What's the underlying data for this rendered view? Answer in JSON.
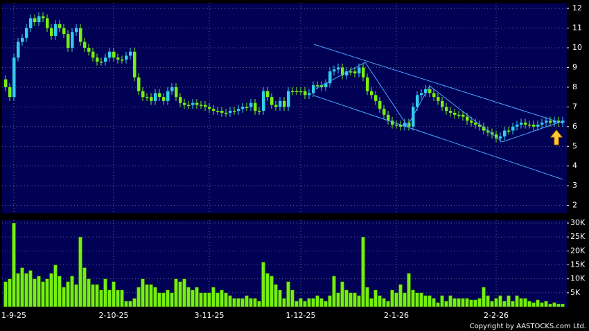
{
  "chart_data": {
    "type": "candlestick",
    "categories": [
      null,
      null,
      "1-9-25",
      null,
      null,
      null,
      null,
      null,
      null,
      null,
      null,
      null,
      null,
      null,
      null,
      null,
      null,
      null,
      null,
      null,
      null,
      null,
      null,
      null,
      null,
      null,
      "2-10-25",
      null,
      null,
      null,
      null,
      null,
      null,
      null,
      null,
      null,
      null,
      null,
      null,
      null,
      null,
      null,
      null,
      null,
      null,
      null,
      null,
      null,
      null,
      "3-11-25",
      null,
      null,
      null,
      null,
      null,
      null,
      null,
      null,
      null,
      null,
      null,
      null,
      null,
      null,
      null,
      null,
      null,
      null,
      null,
      null,
      null,
      "1-12-25",
      null,
      null,
      null,
      null,
      null,
      null,
      null,
      null,
      null,
      null,
      null,
      null,
      null,
      null,
      null,
      null,
      null,
      null,
      null,
      null,
      null,
      null,
      "2-1-26",
      null,
      null,
      null,
      null,
      null,
      null,
      null,
      null,
      null,
      null,
      null,
      null,
      null,
      null,
      null,
      null,
      null,
      null,
      null,
      null,
      null,
      null,
      null,
      "2-2-26",
      null,
      null,
      null,
      null,
      null,
      null,
      null,
      null,
      null,
      null,
      null,
      null,
      null,
      null,
      null,
      null
    ],
    "open": [
      8.4,
      8.0,
      7.5,
      9.5,
      10.3,
      10.5,
      11.0,
      11.5,
      11.3,
      11.6,
      11.5,
      11.0,
      10.6,
      11.2,
      11.0,
      10.7,
      10.0,
      10.8,
      11.0,
      10.3,
      10.0,
      9.8,
      9.5,
      9.3,
      9.3,
      9.5,
      9.8,
      9.5,
      9.4,
      9.4,
      9.6,
      9.8,
      8.5,
      7.8,
      7.5,
      7.5,
      7.3,
      7.7,
      7.5,
      7.3,
      7.8,
      8.0,
      7.5,
      7.2,
      7.1,
      7.1,
      7.2,
      7.1,
      7.1,
      7.0,
      6.9,
      6.8,
      6.8,
      6.7,
      6.7,
      6.8,
      6.8,
      6.9,
      7.0,
      7.0,
      7.2,
      6.8,
      6.8,
      7.8,
      7.5,
      7.1,
      7.0,
      7.3,
      7.0,
      7.8,
      7.8,
      7.8,
      7.8,
      7.6,
      7.7,
      8.1,
      8.1,
      8.0,
      8.2,
      8.8,
      8.9,
      9.0,
      8.6,
      8.8,
      8.8,
      8.7,
      9.0,
      8.5,
      7.8,
      7.6,
      7.3,
      6.9,
      6.6,
      6.3,
      6.1,
      6.1,
      6.0,
      6.2,
      6.0,
      7.0,
      7.6,
      7.7,
      7.9,
      7.7,
      7.5,
      7.3,
      7.0,
      6.8,
      6.7,
      6.6,
      6.6,
      6.5,
      6.3,
      6.2,
      6.1,
      6.0,
      5.8,
      5.7,
      5.6,
      5.4,
      5.5,
      5.8,
      5.8,
      6.0,
      6.1,
      6.2,
      6.1,
      6.1,
      6.0,
      6.1,
      6.2,
      6.3,
      6.2,
      6.3,
      6.2
    ],
    "high": [
      8.6,
      8.2,
      9.7,
      10.5,
      10.7,
      11.2,
      11.7,
      11.7,
      11.8,
      11.8,
      11.7,
      11.2,
      11.4,
      11.4,
      11.2,
      10.9,
      11.0,
      11.2,
      11.2,
      10.5,
      10.2,
      10.0,
      9.7,
      9.5,
      9.7,
      10.0,
      10.0,
      9.7,
      9.6,
      9.8,
      10.0,
      10.0,
      8.7,
      8.0,
      7.7,
      7.7,
      7.9,
      7.9,
      7.7,
      8.0,
      8.2,
      8.2,
      7.7,
      7.4,
      7.3,
      7.4,
      7.4,
      7.3,
      7.3,
      7.2,
      7.1,
      7.0,
      7.0,
      6.9,
      7.0,
      7.0,
      7.1,
      7.2,
      7.2,
      7.4,
      7.4,
      7.0,
      8.0,
      8.0,
      7.7,
      7.3,
      7.5,
      7.5,
      8.0,
      8.0,
      8.0,
      8.0,
      8.0,
      7.9,
      8.3,
      8.3,
      8.3,
      8.4,
      9.0,
      9.1,
      9.2,
      9.2,
      9.0,
      9.0,
      9.0,
      9.2,
      9.2,
      8.7,
      8.0,
      7.8,
      7.5,
      7.1,
      6.8,
      6.5,
      6.3,
      6.3,
      6.4,
      6.4,
      7.2,
      7.8,
      7.9,
      8.1,
      8.1,
      7.9,
      7.7,
      7.5,
      7.2,
      7.0,
      6.9,
      6.8,
      6.8,
      6.7,
      6.5,
      6.4,
      6.3,
      6.2,
      6.0,
      5.9,
      5.8,
      5.7,
      6.0,
      6.0,
      6.2,
      6.3,
      6.4,
      6.4,
      6.3,
      6.3,
      6.3,
      6.4,
      6.5,
      6.5,
      6.5,
      6.5,
      6.5
    ],
    "low": [
      7.8,
      7.3,
      7.3,
      9.3,
      10.1,
      10.3,
      10.8,
      11.1,
      11.1,
      11.3,
      10.8,
      10.4,
      10.4,
      10.8,
      10.5,
      9.8,
      9.8,
      10.6,
      10.1,
      9.8,
      9.6,
      9.3,
      9.1,
      9.1,
      9.1,
      9.3,
      9.3,
      9.2,
      9.2,
      9.2,
      9.4,
      8.3,
      7.6,
      7.3,
      7.3,
      7.1,
      7.1,
      7.3,
      7.1,
      7.1,
      7.6,
      7.3,
      7.0,
      6.9,
      6.9,
      6.9,
      6.9,
      6.9,
      6.8,
      6.7,
      6.6,
      6.6,
      6.5,
      6.5,
      6.5,
      6.6,
      6.6,
      6.7,
      6.8,
      6.8,
      6.6,
      6.6,
      6.6,
      7.3,
      6.9,
      6.8,
      6.8,
      6.8,
      6.8,
      7.6,
      7.6,
      7.6,
      7.4,
      7.4,
      7.5,
      7.9,
      7.8,
      7.8,
      8.0,
      8.6,
      8.7,
      8.4,
      8.4,
      8.6,
      8.5,
      8.5,
      8.3,
      7.6,
      7.4,
      7.1,
      6.7,
      6.4,
      6.1,
      5.9,
      5.9,
      5.8,
      5.8,
      5.8,
      5.8,
      6.8,
      7.4,
      7.5,
      7.5,
      7.3,
      7.1,
      6.8,
      6.6,
      6.5,
      6.4,
      6.4,
      6.3,
      6.1,
      6.0,
      5.9,
      5.8,
      5.6,
      5.5,
      5.4,
      5.2,
      5.2,
      5.3,
      5.6,
      5.6,
      5.8,
      5.9,
      5.9,
      5.9,
      5.8,
      5.8,
      5.9,
      6.0,
      6.0,
      6.0,
      6.0,
      6.0
    ],
    "close": [
      8.0,
      7.5,
      9.5,
      10.3,
      10.5,
      11.0,
      11.5,
      11.3,
      11.6,
      11.5,
      11.0,
      10.6,
      11.2,
      11.0,
      10.7,
      10.0,
      10.8,
      11.0,
      10.3,
      10.0,
      9.8,
      9.5,
      9.3,
      9.3,
      9.5,
      9.8,
      9.5,
      9.4,
      9.4,
      9.6,
      9.8,
      8.5,
      7.8,
      7.5,
      7.5,
      7.3,
      7.7,
      7.5,
      7.3,
      7.8,
      8.0,
      7.5,
      7.2,
      7.1,
      7.1,
      7.2,
      7.1,
      7.1,
      7.0,
      6.9,
      6.8,
      6.8,
      6.7,
      6.7,
      6.8,
      6.8,
      6.9,
      7.0,
      7.0,
      7.2,
      6.8,
      6.8,
      7.8,
      7.5,
      7.1,
      7.0,
      7.3,
      7.0,
      7.8,
      7.8,
      7.8,
      7.8,
      7.6,
      7.7,
      8.1,
      8.1,
      8.0,
      8.2,
      8.8,
      8.9,
      9.0,
      8.6,
      8.8,
      8.8,
      8.7,
      9.0,
      8.5,
      7.8,
      7.6,
      7.3,
      6.9,
      6.6,
      6.3,
      6.1,
      6.1,
      6.0,
      6.2,
      6.0,
      7.0,
      7.6,
      7.7,
      7.9,
      7.7,
      7.5,
      7.3,
      7.0,
      6.8,
      6.7,
      6.6,
      6.6,
      6.5,
      6.3,
      6.2,
      6.1,
      6.0,
      5.8,
      5.7,
      5.6,
      5.4,
      5.5,
      5.8,
      5.8,
      6.0,
      6.1,
      6.2,
      6.1,
      6.1,
      6.0,
      6.1,
      6.2,
      6.3,
      6.2,
      6.3,
      6.2,
      6.3
    ],
    "volume": [
      9000,
      10000,
      30000,
      12000,
      14000,
      12000,
      13000,
      10000,
      11000,
      9000,
      10000,
      12000,
      15000,
      11000,
      7000,
      9000,
      11000,
      8000,
      25000,
      14000,
      10000,
      8000,
      8000,
      6000,
      10000,
      6000,
      9000,
      6000,
      6000,
      2000,
      2000,
      3000,
      7000,
      10000,
      8000,
      8000,
      7000,
      5000,
      5000,
      6000,
      5000,
      10000,
      9000,
      10000,
      7000,
      6000,
      7000,
      5000,
      5000,
      5000,
      7000,
      5000,
      6000,
      5000,
      4000,
      3000,
      3000,
      3000,
      4000,
      3000,
      3000,
      2000,
      16000,
      12000,
      11000,
      8000,
      6000,
      3000,
      9000,
      6000,
      2000,
      3000,
      2000,
      3000,
      3000,
      4000,
      3000,
      2000,
      4000,
      11000,
      5000,
      9000,
      6000,
      5000,
      5000,
      4000,
      25000,
      7000,
      3000,
      6000,
      4000,
      3000,
      2000,
      6000,
      5000,
      8000,
      5000,
      12000,
      6000,
      5000,
      5000,
      4000,
      4000,
      3000,
      1500,
      4000,
      2000,
      4000,
      3000,
      3000,
      3000,
      3000,
      2500,
      2500,
      3000,
      7000,
      4000,
      2000,
      3000,
      4000,
      2000,
      4000,
      2000,
      4000,
      3000,
      3000,
      2000,
      1500,
      2500,
      1500,
      2000,
      1000,
      1500,
      1000,
      1000
    ],
    "ylim": [
      1.6,
      12.25
    ],
    "yticks": [
      2,
      3,
      4,
      5,
      6,
      7,
      8,
      9,
      10,
      11,
      12
    ],
    "volume_ylim": [
      0,
      31000
    ],
    "volume_yticks": [
      {
        "value": 5000,
        "label": "5K"
      },
      {
        "value": 10000,
        "label": "10K"
      },
      {
        "value": 15000,
        "label": "15K"
      },
      {
        "value": 20000,
        "label": "20K"
      },
      {
        "value": 25000,
        "label": "25K"
      },
      {
        "value": 30000,
        "label": "30K"
      }
    ],
    "grid": true,
    "up_color": "#33ccee",
    "down_color": "#77ee11",
    "volume_color": "#77ee11",
    "copyright": "Copyright by AASTOCKS.com Ltd."
  }
}
